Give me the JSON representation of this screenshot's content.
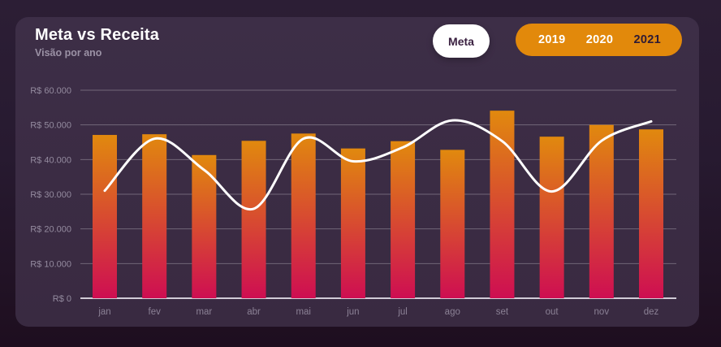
{
  "card": {
    "title": "Meta vs Receita",
    "subtitle": "Visão por ano",
    "background": "#3b2c44"
  },
  "controls": {
    "meta_toggle": {
      "label": "Meta",
      "bg": "#ffffff",
      "text_color": "#3a2040"
    },
    "year_selector": {
      "bg": "#e2890b",
      "options": [
        {
          "label": "2019",
          "selected": false
        },
        {
          "label": "2020",
          "selected": false
        },
        {
          "label": "2021",
          "selected": true
        }
      ]
    }
  },
  "chart_data": {
    "type": "bar",
    "title": "Meta vs Receita",
    "subtitle": "Visão por ano",
    "categories": [
      "jan",
      "fev",
      "mar",
      "abr",
      "mai",
      "jun",
      "jul",
      "ago",
      "set",
      "out",
      "nov",
      "dez"
    ],
    "series": [
      {
        "name": "Receita",
        "type": "bar",
        "values": [
          47100,
          47300,
          41300,
          45400,
          47500,
          43200,
          45300,
          42800,
          54100,
          46600,
          50000,
          48700
        ],
        "gradient_top": "#e1890e",
        "gradient_bottom": "#ce0e52"
      },
      {
        "name": "Meta",
        "type": "line",
        "color": "#ffffff",
        "values": [
          31000,
          46000,
          37000,
          25800,
          46000,
          39500,
          43500,
          51300,
          45300,
          30800,
          45400,
          51000
        ]
      }
    ],
    "y_tick_values": [
      60000,
      50000,
      40000,
      30000,
      20000,
      10000,
      0
    ],
    "y_tick_labels": [
      "R$ 60.000",
      "R$ 50.000",
      "R$ 40.000",
      "R$ 30.000",
      "R$ 20.000",
      "R$ 10.000",
      "R$ 0"
    ],
    "ylim": [
      0,
      60000
    ],
    "grid": true,
    "grid_color": "rgba(255,255,255,0.28)",
    "baseline_color": "rgba(236,232,240,0.85)",
    "axis_label_color": "#948b9f",
    "month_label_color": "#8b8195",
    "legend_position": "none"
  }
}
